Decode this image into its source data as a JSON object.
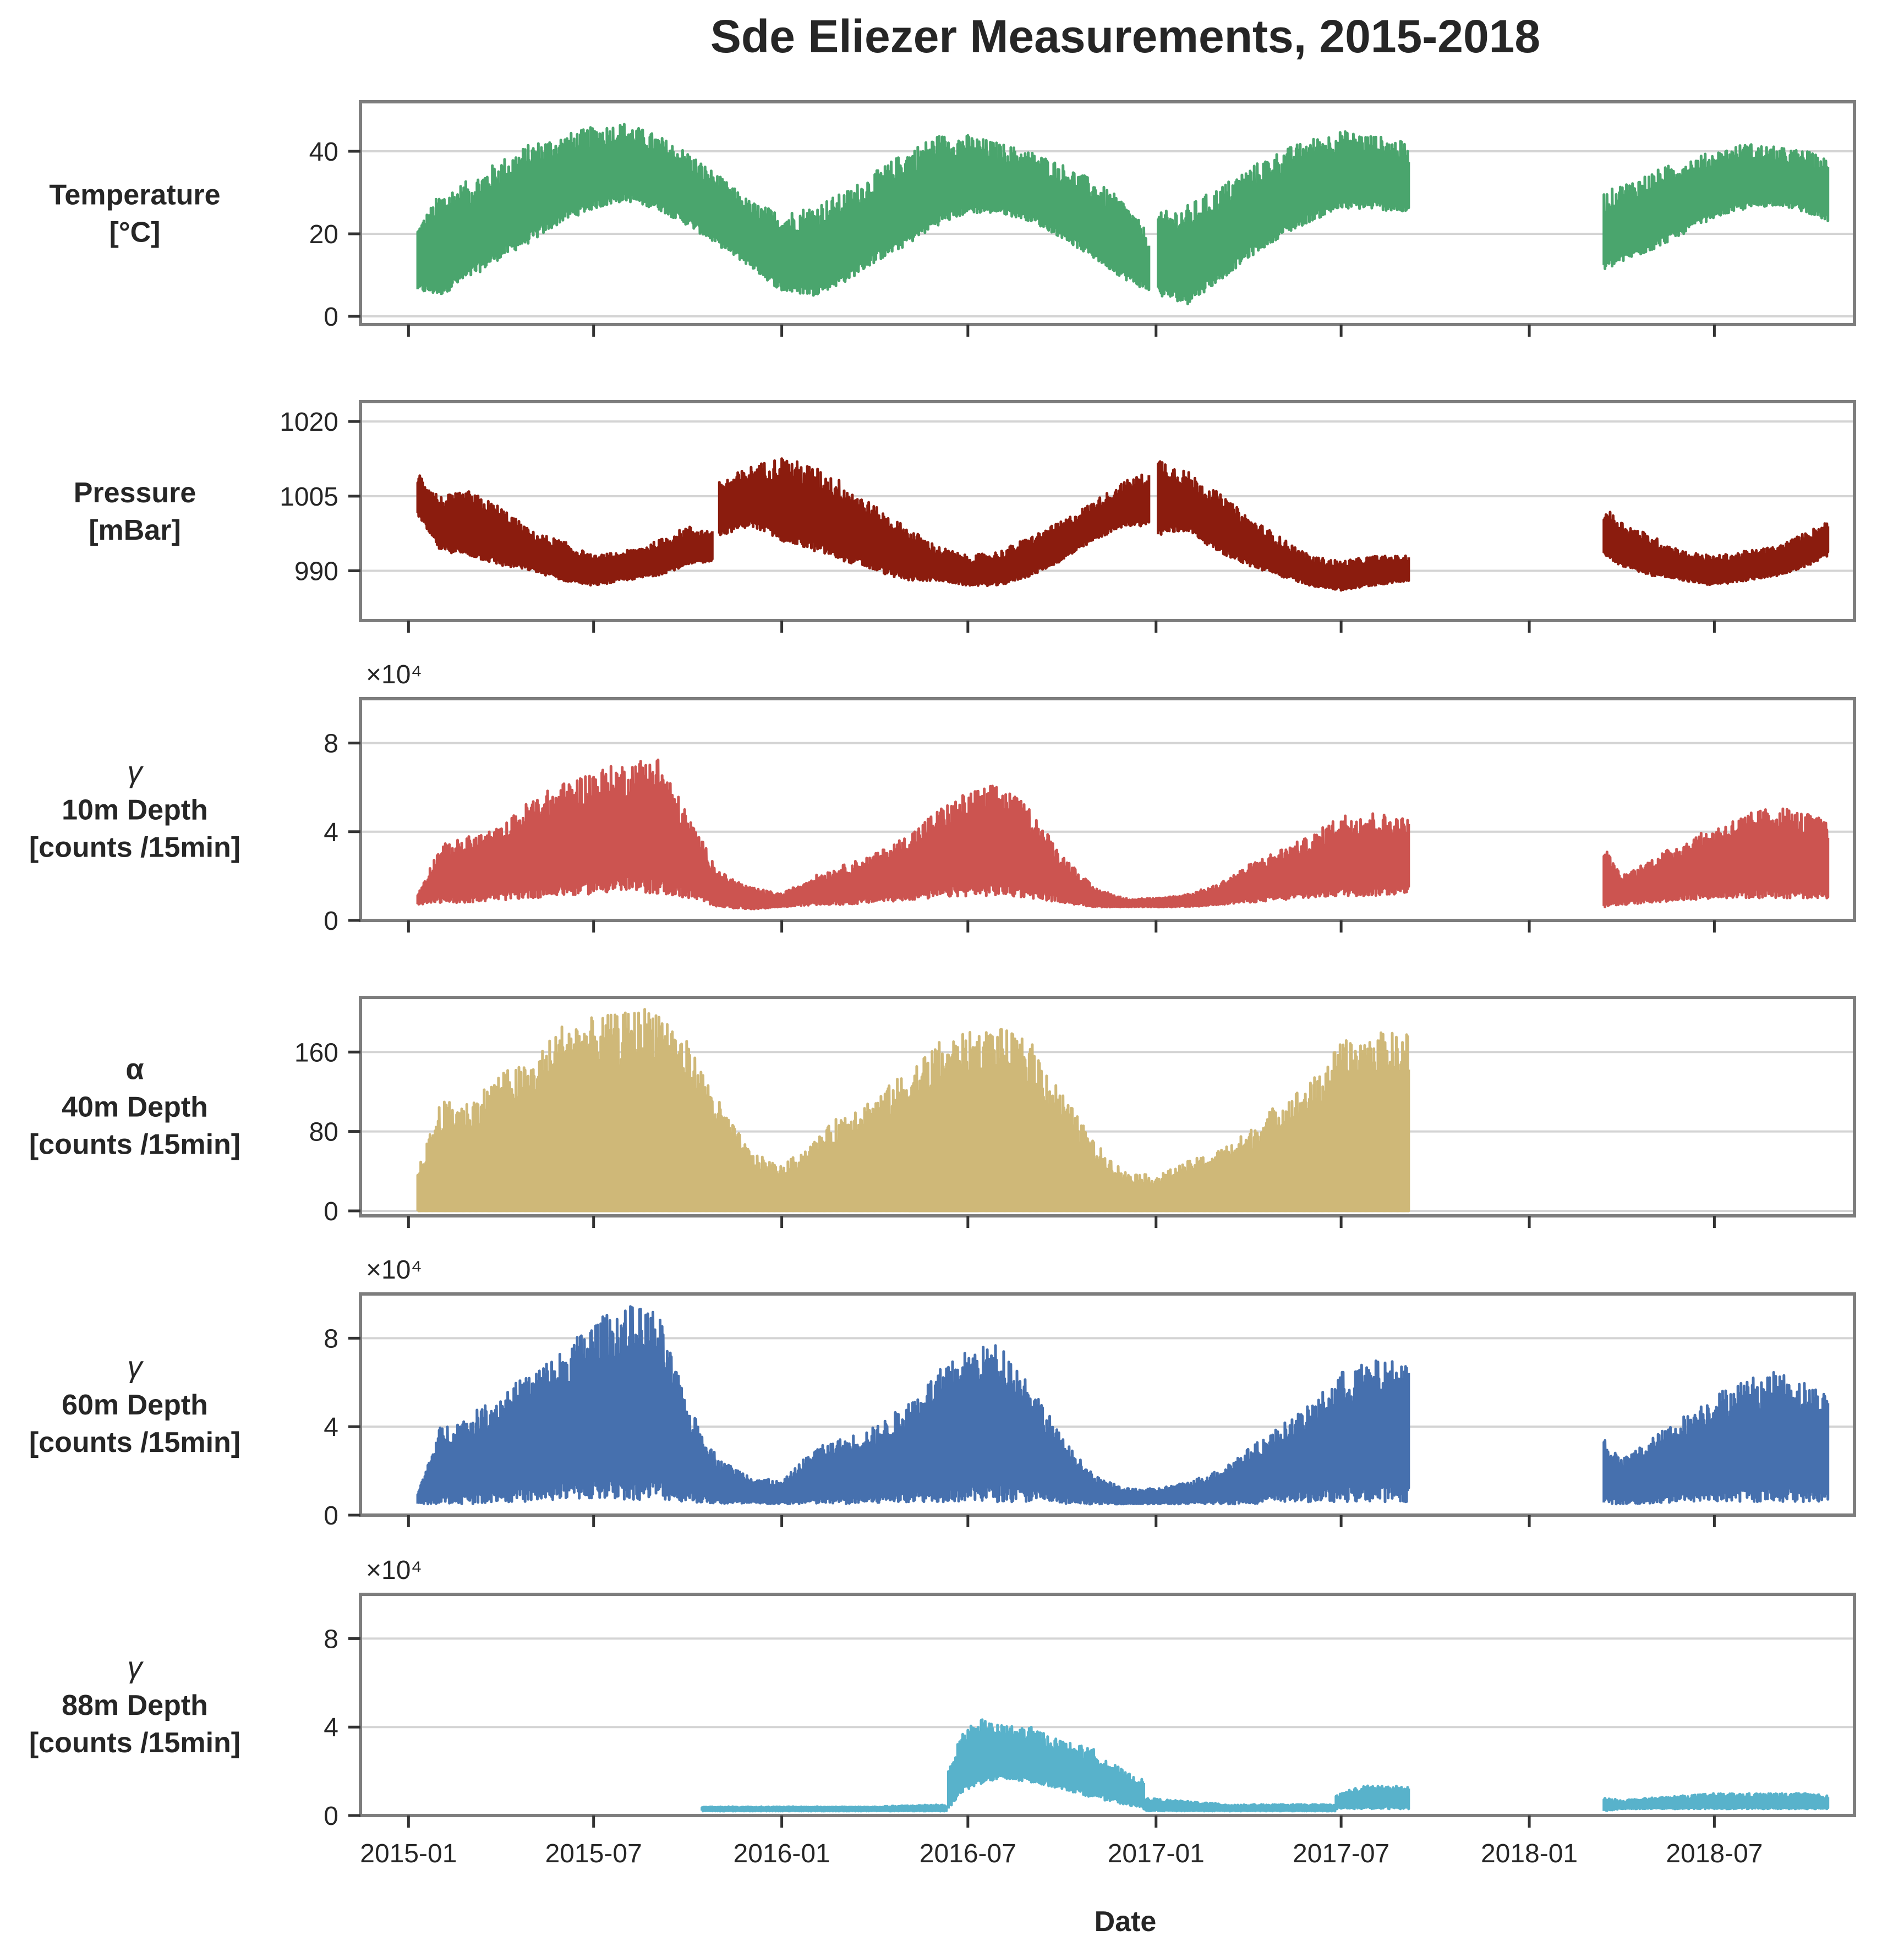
{
  "chart_data": {
    "type": "line",
    "title": "Sde Eliezer Measurements, 2015-2018",
    "xlabel": "Date",
    "x_ticks": [
      "2015-01",
      "2015-07",
      "2016-01",
      "2016-07",
      "2017-01",
      "2017-07",
      "2018-01",
      "2018-07"
    ],
    "x_range": [
      "2014-11-15",
      "2018-11-15"
    ],
    "panels": [
      {
        "id": "temperature",
        "label_lines": [
          "Temperature",
          "[°C]"
        ],
        "color": "#4aa56d",
        "ylim": [
          -2,
          52
        ],
        "yticks": [
          0,
          20,
          40
        ],
        "scale_label": "",
        "style": "band",
        "segments": [
          {
            "x": [
              "2015-01-10",
              "2015-02-01",
              "2015-03-01",
              "2015-04-01",
              "2015-05-01",
              "2015-06-01",
              "2015-07-01",
              "2015-08-01",
              "2015-09-01",
              "2015-10-01",
              "2015-11-01",
              "2015-12-01",
              "2016-01-01",
              "2016-02-01",
              "2016-03-01",
              "2016-04-01",
              "2016-05-01",
              "2016-06-01",
              "2016-07-01",
              "2016-08-01",
              "2016-09-01",
              "2016-10-01",
              "2016-11-01",
              "2016-12-01",
              "2016-12-25"
            ],
            "high": [
              22,
              30,
              33,
              38,
              42,
              44,
              46,
              47,
              44,
              40,
              34,
              28,
              25,
              27,
              30,
              35,
              40,
              44,
              44,
              42,
              40,
              37,
              33,
              28,
              20
            ],
            "low": [
              6,
              5,
              9,
              14,
              18,
              23,
              26,
              28,
              26,
              22,
              17,
              12,
              6,
              5,
              8,
              13,
              17,
              22,
              25,
              25,
              23,
              19,
              14,
              9,
              6
            ]
          },
          {
            "x": [
              "2017-01-03",
              "2017-02-01",
              "2017-03-01",
              "2017-04-01",
              "2017-05-01",
              "2017-06-01",
              "2017-07-01",
              "2017-08-01",
              "2017-09-05"
            ],
            "high": [
              25,
              27,
              31,
              36,
              40,
              43,
              45,
              44,
              42
            ],
            "low": [
              5,
              3,
              8,
              14,
              19,
              23,
              26,
              26,
              25
            ]
          },
          {
            "x": [
              "2018-03-15",
              "2018-04-01",
              "2018-05-01",
              "2018-06-01",
              "2018-07-01",
              "2018-08-01",
              "2018-09-01",
              "2018-10-01",
              "2018-10-20"
            ],
            "high": [
              30,
              32,
              35,
              38,
              40,
              42,
              41,
              40,
              38
            ],
            "low": [
              11,
              13,
              16,
              20,
              24,
              26,
              27,
              25,
              23
            ]
          }
        ]
      },
      {
        "id": "pressure",
        "label_lines": [
          "Pressure",
          "[mBar]"
        ],
        "color": "#8b1c0e",
        "ylim": [
          980,
          1024
        ],
        "yticks": [
          990,
          1005,
          1020
        ],
        "scale_label": "",
        "style": "band",
        "segments": [
          {
            "x": [
              "2015-01-10",
              "2015-02-01",
              "2015-03-01",
              "2015-04-01",
              "2015-05-01",
              "2015-06-01",
              "2015-07-01",
              "2015-08-01",
              "2015-09-01",
              "2015-10-01",
              "2015-10-25"
            ],
            "high": [
              1010,
              1005,
              1006,
              1003,
              998,
              996,
              993,
              994,
              996,
              999,
              998
            ],
            "low": [
              1001,
              994,
              993,
              991,
              990,
              988,
              987,
              988,
              989,
              991,
              992
            ]
          },
          {
            "x": [
              "2015-11-01",
              "2015-12-01",
              "2016-01-01",
              "2016-02-01",
              "2016-03-01",
              "2016-04-01",
              "2016-05-01",
              "2016-06-01",
              "2016-07-01",
              "2016-08-01",
              "2016-09-01",
              "2016-10-01",
              "2016-11-01",
              "2016-12-01",
              "2016-12-25"
            ],
            "high": [
              1008,
              1011,
              1013,
              1011,
              1008,
              1003,
              999,
              995,
              993,
              994,
              997,
              1000,
              1004,
              1008,
              1010
            ],
            "low": [
              997,
              999,
              996,
              994,
              992,
              990,
              988,
              988,
              987,
              987,
              989,
              992,
              996,
              999,
              999
            ]
          },
          {
            "x": [
              "2017-01-03",
              "2017-02-01",
              "2017-03-01",
              "2017-04-01",
              "2017-05-01",
              "2017-06-01",
              "2017-07-01",
              "2017-08-01",
              "2017-09-05"
            ],
            "high": [
              1013,
              1010,
              1006,
              1001,
              997,
              993,
              992,
              993,
              993
            ],
            "low": [
              997,
              998,
              994,
              991,
              989,
              987,
              986,
              987,
              988
            ]
          },
          {
            "x": [
              "2018-03-15",
              "2018-04-01",
              "2018-05-01",
              "2018-06-01",
              "2018-07-01",
              "2018-08-01",
              "2018-09-01",
              "2018-10-01",
              "2018-10-20"
            ],
            "high": [
              1003,
              1000,
              997,
              994,
              993,
              994,
              995,
              998,
              1000
            ],
            "low": [
              993,
              991,
              989,
              988,
              987,
              988,
              989,
              991,
              993
            ]
          }
        ]
      },
      {
        "id": "gamma-10m",
        "label_lines": [
          "γ",
          "10m Depth",
          "[counts /15min]"
        ],
        "color": "#cc5450",
        "ylim": [
          0,
          10
        ],
        "yticks": [
          0,
          4,
          8
        ],
        "scale_label": "×10⁴",
        "style": "band",
        "segments": [
          {
            "x": [
              "2015-01-10",
              "2015-02-01",
              "2015-03-01",
              "2015-04-01",
              "2015-05-01",
              "2015-06-01",
              "2015-07-01",
              "2015-08-01",
              "2015-09-01",
              "2015-10-01",
              "2015-11-01",
              "2015-12-01",
              "2016-01-01",
              "2016-02-01",
              "2016-03-01",
              "2016-04-01",
              "2016-05-01",
              "2016-06-01",
              "2016-07-01",
              "2016-08-01",
              "2016-09-01",
              "2016-10-01",
              "2016-11-01",
              "2016-12-01",
              "2017-01-01",
              "2017-02-01",
              "2017-03-01",
              "2017-04-01",
              "2017-05-01",
              "2017-06-01",
              "2017-07-01",
              "2017-08-01",
              "2017-09-05"
            ],
            "high": [
              1.2,
              3.4,
              3.8,
              4.2,
              5.5,
              6.2,
              6.8,
              7.1,
              7.5,
              4.8,
              2.2,
              1.5,
              1.2,
              2.0,
              2.5,
              3.0,
              3.8,
              5.0,
              5.8,
              6.2,
              5.0,
              3.0,
              1.5,
              1.0,
              1.0,
              1.2,
              1.6,
              2.5,
              3.2,
              3.8,
              4.8,
              4.9,
              4.6
            ],
            "low": [
              0.7,
              0.8,
              0.8,
              0.9,
              1.0,
              1.1,
              1.2,
              1.3,
              1.2,
              1.0,
              0.6,
              0.5,
              0.6,
              0.7,
              0.7,
              0.8,
              0.9,
              1.0,
              1.1,
              1.1,
              1.0,
              0.8,
              0.6,
              0.6,
              0.6,
              0.6,
              0.7,
              0.8,
              0.9,
              1.0,
              1.1,
              1.1,
              1.2
            ]
          },
          {
            "x": [
              "2018-03-15",
              "2018-04-01",
              "2018-05-01",
              "2018-06-01",
              "2018-07-01",
              "2018-08-01",
              "2018-09-01",
              "2018-10-01",
              "2018-10-20"
            ],
            "high": [
              3.4,
              2.0,
              2.8,
              3.6,
              4.2,
              4.8,
              5.2,
              4.8,
              4.5
            ],
            "low": [
              0.6,
              0.7,
              0.8,
              0.9,
              1.0,
              1.0,
              1.0,
              1.0,
              1.0
            ]
          }
        ]
      },
      {
        "id": "alpha-40m",
        "label_lines": [
          "α",
          "40m Depth",
          "[counts /15min]"
        ],
        "color": "#cfb878",
        "ylim": [
          -5,
          215
        ],
        "yticks": [
          0,
          80,
          160
        ],
        "scale_label": "",
        "style": "fill",
        "segments": [
          {
            "x": [
              "2015-01-10",
              "2015-02-01",
              "2015-03-01",
              "2015-04-01",
              "2015-05-01",
              "2015-06-01",
              "2015-07-01",
              "2015-08-01",
              "2015-09-01",
              "2015-10-01",
              "2015-11-01",
              "2015-12-01",
              "2016-01-01",
              "2016-02-01",
              "2016-03-01",
              "2016-04-01",
              "2016-05-01",
              "2016-06-01",
              "2016-07-01",
              "2016-08-01",
              "2016-09-01",
              "2016-10-01",
              "2016-11-01",
              "2016-12-01",
              "2017-01-01",
              "2017-02-01",
              "2017-03-01",
              "2017-04-01",
              "2017-05-01",
              "2017-06-01",
              "2017-07-01",
              "2017-08-01",
              "2017-09-05"
            ],
            "high": [
              40,
              110,
              110,
              140,
              150,
              190,
              195,
              200,
              210,
              170,
              110,
              60,
              45,
              70,
              100,
              115,
              140,
              170,
              180,
              185,
              170,
              120,
              70,
              40,
              35,
              50,
              60,
              80,
              110,
              130,
              170,
              180,
              180
            ]
          }
        ]
      },
      {
        "id": "gamma-60m",
        "label_lines": [
          "γ",
          "60m Depth",
          "[counts /15min]"
        ],
        "color": "#4670ae",
        "ylim": [
          0,
          10
        ],
        "yticks": [
          0,
          4,
          8
        ],
        "scale_label": "×10⁴",
        "style": "band",
        "segments": [
          {
            "x": [
              "2015-01-10",
              "2015-02-01",
              "2015-03-01",
              "2015-04-01",
              "2015-05-01",
              "2015-06-01",
              "2015-07-01",
              "2015-08-01",
              "2015-09-01",
              "2015-10-01",
              "2015-11-01",
              "2015-12-01",
              "2016-01-01",
              "2016-02-01",
              "2016-03-01",
              "2016-04-01",
              "2016-05-01",
              "2016-06-01",
              "2016-07-01",
              "2016-08-01",
              "2016-09-01",
              "2016-10-01",
              "2016-11-01",
              "2016-12-01",
              "2017-01-01",
              "2017-02-01",
              "2017-03-01",
              "2017-04-01",
              "2017-05-01",
              "2017-06-01",
              "2017-07-01",
              "2017-08-01",
              "2017-09-05"
            ],
            "high": [
              1.0,
              4.0,
              4.5,
              5.5,
              6.5,
              7.5,
              8.8,
              9.5,
              9.3,
              5.0,
              2.5,
              1.8,
              1.5,
              3.0,
              3.5,
              4.0,
              5.0,
              6.5,
              7.5,
              7.8,
              6.0,
              3.5,
              1.8,
              1.2,
              1.2,
              1.5,
              2.0,
              3.0,
              4.0,
              5.0,
              6.5,
              7.0,
              7.0
            ],
            "low": [
              0.5,
              0.5,
              0.5,
              0.6,
              0.6,
              0.7,
              0.7,
              0.7,
              0.7,
              0.6,
              0.5,
              0.5,
              0.5,
              0.5,
              0.5,
              0.5,
              0.6,
              0.6,
              0.6,
              0.6,
              0.6,
              0.5,
              0.5,
              0.5,
              0.5,
              0.5,
              0.5,
              0.5,
              0.6,
              0.6,
              0.6,
              0.6,
              0.6
            ]
          },
          {
            "x": [
              "2018-03-15",
              "2018-04-01",
              "2018-05-01",
              "2018-06-01",
              "2018-07-01",
              "2018-08-01",
              "2018-09-01",
              "2018-10-01",
              "2018-10-20"
            ],
            "high": [
              3.6,
              2.5,
              3.5,
              4.5,
              5.5,
              6.2,
              6.5,
              6.0,
              5.5
            ],
            "low": [
              0.5,
              0.5,
              0.5,
              0.6,
              0.6,
              0.6,
              0.6,
              0.6,
              0.6
            ]
          }
        ]
      },
      {
        "id": "gamma-88m",
        "label_lines": [
          "γ",
          "88m Depth",
          "[counts /15min]"
        ],
        "color": "#58b2cb",
        "ylim": [
          0,
          10
        ],
        "yticks": [
          0,
          4,
          8
        ],
        "scale_label": "×10⁴",
        "style": "band",
        "segments": [
          {
            "x": [
              "2015-10-15",
              "2015-12-01",
              "2016-02-01",
              "2016-04-01",
              "2016-06-01",
              "2016-06-10"
            ],
            "high": [
              0.4,
              0.4,
              0.4,
              0.4,
              0.5,
              0.5
            ],
            "low": [
              0.2,
              0.2,
              0.2,
              0.2,
              0.2,
              0.2
            ]
          },
          {
            "x": [
              "2016-06-12",
              "2016-06-25",
              "2016-07-10",
              "2016-08-01",
              "2016-09-01",
              "2016-10-01",
              "2016-11-01",
              "2016-12-01",
              "2016-12-20"
            ],
            "high": [
              2.0,
              3.8,
              4.4,
              4.1,
              4.0,
              3.4,
              3.0,
              2.0,
              1.6
            ],
            "low": [
              0.3,
              1.0,
              1.4,
              1.6,
              1.5,
              1.2,
              0.8,
              0.5,
              0.3
            ]
          },
          {
            "x": [
              "2016-12-21",
              "2017-01-15",
              "2017-02-15",
              "2017-03-15",
              "2017-04-15",
              "2017-05-15",
              "2017-06-15",
              "2017-06-25"
            ],
            "high": [
              0.8,
              0.7,
              0.6,
              0.5,
              0.5,
              0.5,
              0.5,
              0.5
            ],
            "low": [
              0.2,
              0.2,
              0.2,
              0.2,
              0.2,
              0.2,
              0.2,
              0.2
            ]
          },
          {
            "x": [
              "2017-06-26",
              "2017-07-10",
              "2017-08-01",
              "2017-09-05"
            ],
            "high": [
              0.9,
              1.2,
              1.4,
              1.3
            ],
            "low": [
              0.3,
              0.3,
              0.3,
              0.3
            ]
          },
          {
            "x": [
              "2018-03-15",
              "2018-04-01",
              "2018-05-01",
              "2018-06-01",
              "2018-07-01",
              "2018-08-01",
              "2018-09-01",
              "2018-10-01",
              "2018-10-20"
            ],
            "high": [
              0.8,
              0.7,
              0.8,
              0.9,
              1.0,
              1.0,
              1.0,
              1.0,
              0.9
            ],
            "low": [
              0.2,
              0.3,
              0.3,
              0.3,
              0.3,
              0.3,
              0.3,
              0.3,
              0.3
            ]
          }
        ]
      }
    ]
  }
}
